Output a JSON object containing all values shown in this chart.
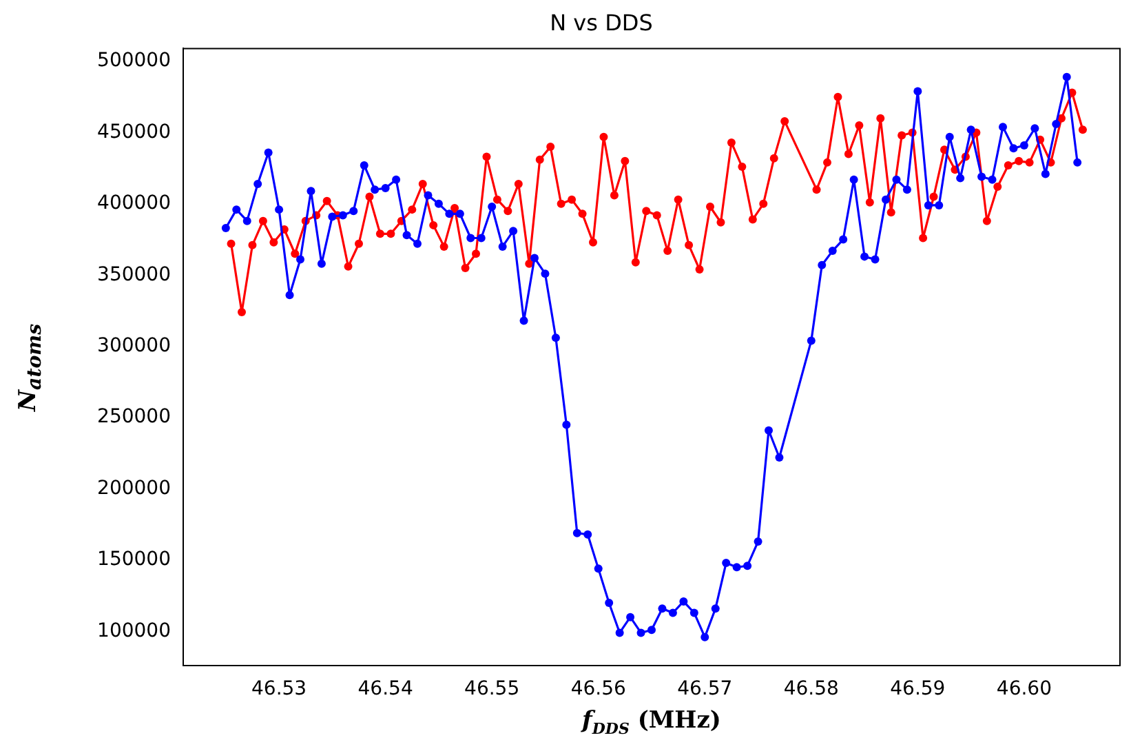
{
  "chart_data": {
    "type": "line",
    "title": "N vs DDS",
    "xlabel": "f$_{DDS}$ (MHz)",
    "ylabel": "N$_{atoms}$",
    "xlim": [
      46.521,
      46.609
    ],
    "xticks": [
      46.53,
      46.54,
      46.55,
      46.56,
      46.57,
      46.58,
      46.59,
      {
        "value": 46.6,
        "label": "46.60"
      }
    ],
    "ylim": [
      76000,
      509000
    ],
    "yticks": [
      100000,
      150000,
      200000,
      250000,
      300000,
      350000,
      400000,
      450000,
      500000
    ],
    "grid": false,
    "legend": false,
    "marker": "circle",
    "line_style": "solid",
    "series": [
      {
        "color": "#0000ff",
        "x": [
          46.525,
          46.526,
          46.527,
          46.528,
          46.529,
          46.53,
          46.531,
          46.532,
          46.533,
          46.534,
          46.535,
          46.536,
          46.537,
          46.538,
          46.539,
          46.54,
          46.541,
          46.542,
          46.543,
          46.544,
          46.545,
          46.546,
          46.547,
          46.548,
          46.549,
          46.55,
          46.551,
          46.552,
          46.553,
          46.554,
          46.555,
          46.556,
          46.557,
          46.558,
          46.559,
          46.56,
          46.561,
          46.562,
          46.563,
          46.564,
          46.565,
          46.566,
          46.567,
          46.568,
          46.569,
          46.57,
          46.571,
          46.572,
          46.573,
          46.574,
          46.575,
          46.576,
          46.577,
          46.58,
          46.581,
          46.582,
          46.583,
          46.584,
          46.585,
          46.586,
          46.587,
          46.588,
          46.589,
          46.59,
          46.591,
          46.592,
          46.593,
          46.594,
          46.595,
          46.596,
          46.597,
          46.598,
          46.599,
          46.6,
          46.601,
          46.602,
          46.603,
          46.604,
          46.605
        ],
        "values": [
          383000,
          396000,
          388000,
          414000,
          436000,
          396000,
          336000,
          361000,
          409000,
          358000,
          391000,
          392000,
          395000,
          427000,
          410000,
          411000,
          417000,
          378000,
          372000,
          406000,
          400000,
          393000,
          393000,
          376000,
          376000,
          398000,
          370000,
          381000,
          318000,
          362000,
          351000,
          306000,
          245000,
          169000,
          168000,
          144000,
          120000,
          99000,
          110000,
          99000,
          101000,
          116000,
          113000,
          121000,
          113000,
          96000,
          116000,
          148000,
          145000,
          146000,
          163000,
          241000,
          222000,
          304000,
          357000,
          367000,
          375000,
          417000,
          363000,
          361000,
          403000,
          417000,
          410000,
          479000,
          399000,
          399000,
          447000,
          418000,
          452000,
          419000,
          417000,
          454000,
          439000,
          441000,
          453000,
          421000,
          456000,
          489000,
          429000
        ]
      },
      {
        "color": "#ff0000",
        "x": [
          46.5255,
          46.5265,
          46.5275,
          46.5285,
          46.5295,
          46.5305,
          46.5315,
          46.5325,
          46.5335,
          46.5345,
          46.5355,
          46.5365,
          46.5375,
          46.5385,
          46.5395,
          46.5405,
          46.5415,
          46.5425,
          46.5435,
          46.5445,
          46.5455,
          46.5465,
          46.5475,
          46.5485,
          46.5495,
          46.5505,
          46.5515,
          46.5525,
          46.5535,
          46.5545,
          46.5555,
          46.5565,
          46.5575,
          46.5585,
          46.5595,
          46.5605,
          46.5615,
          46.5625,
          46.5635,
          46.5645,
          46.5655,
          46.5665,
          46.5675,
          46.5685,
          46.5695,
          46.5705,
          46.5715,
          46.5725,
          46.5735,
          46.5745,
          46.5755,
          46.5765,
          46.5775,
          46.5805,
          46.5815,
          46.5825,
          46.5835,
          46.5845,
          46.5855,
          46.5865,
          46.5875,
          46.5885,
          46.5895,
          46.5905,
          46.5915,
          46.5925,
          46.5935,
          46.5945,
          46.5955,
          46.5965,
          46.5975,
          46.5985,
          46.5995,
          46.6005,
          46.6015,
          46.6025,
          46.6035,
          46.6045,
          46.6055
        ],
        "values": [
          372000,
          324000,
          371000,
          388000,
          373000,
          382000,
          365000,
          388000,
          392000,
          402000,
          392000,
          356000,
          372000,
          405000,
          379000,
          379000,
          388000,
          396000,
          414000,
          385000,
          370000,
          397000,
          355000,
          365000,
          433000,
          403000,
          395000,
          414000,
          358000,
          431000,
          440000,
          400000,
          403000,
          393000,
          373000,
          447000,
          406000,
          430000,
          359000,
          395000,
          392000,
          367000,
          403000,
          371000,
          354000,
          398000,
          387000,
          443000,
          426000,
          389000,
          400000,
          432000,
          458000,
          410000,
          429000,
          475000,
          435000,
          455000,
          401000,
          460000,
          394000,
          448000,
          450000,
          376000,
          405000,
          438000,
          424000,
          433000,
          450000,
          388000,
          412000,
          427000,
          430000,
          429000,
          445000,
          429000,
          460000,
          478000,
          452000
        ]
      }
    ]
  }
}
